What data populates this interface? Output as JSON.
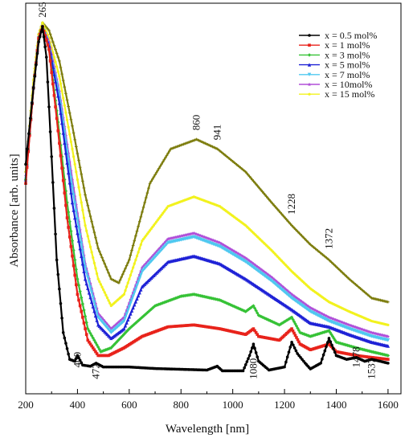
{
  "chart_data": {
    "type": "line",
    "xlabel": "Wavelength [nm]",
    "ylabel": "Absorbance [arb. units]",
    "xlim": [
      200,
      1650
    ],
    "ylim": [
      0,
      1
    ],
    "xticks": [
      200,
      400,
      600,
      800,
      1000,
      1200,
      1400,
      1600
    ],
    "grid": false,
    "legend_position": "top-right",
    "series": [
      {
        "name": "x = 0.5 mol%",
        "color": "#000000",
        "marker": "circle",
        "points": [
          [
            200,
            0.6
          ],
          [
            230,
            0.8
          ],
          [
            250,
            0.92
          ],
          [
            265,
            0.96
          ],
          [
            280,
            0.88
          ],
          [
            300,
            0.62
          ],
          [
            320,
            0.35
          ],
          [
            345,
            0.16
          ],
          [
            370,
            0.09
          ],
          [
            390,
            0.085
          ],
          [
            400,
            0.1
          ],
          [
            420,
            0.075
          ],
          [
            450,
            0.072
          ],
          [
            472,
            0.08
          ],
          [
            500,
            0.07
          ],
          [
            600,
            0.07
          ],
          [
            700,
            0.066
          ],
          [
            800,
            0.064
          ],
          [
            900,
            0.062
          ],
          [
            940,
            0.072
          ],
          [
            960,
            0.06
          ],
          [
            1040,
            0.06
          ],
          [
            1065,
            0.1
          ],
          [
            1080,
            0.13
          ],
          [
            1100,
            0.085
          ],
          [
            1140,
            0.062
          ],
          [
            1200,
            0.07
          ],
          [
            1228,
            0.135
          ],
          [
            1250,
            0.105
          ],
          [
            1280,
            0.08
          ],
          [
            1300,
            0.065
          ],
          [
            1340,
            0.08
          ],
          [
            1372,
            0.145
          ],
          [
            1400,
            0.1
          ],
          [
            1440,
            0.09
          ],
          [
            1478,
            0.095
          ],
          [
            1510,
            0.085
          ],
          [
            1537,
            0.09
          ],
          [
            1570,
            0.085
          ],
          [
            1600,
            0.08
          ]
        ]
      },
      {
        "name": "x = 1 mol%",
        "color": "#e8231b",
        "marker": "square",
        "points": [
          [
            200,
            0.55
          ],
          [
            230,
            0.8
          ],
          [
            250,
            0.93
          ],
          [
            265,
            0.96
          ],
          [
            290,
            0.9
          ],
          [
            320,
            0.72
          ],
          [
            360,
            0.46
          ],
          [
            400,
            0.26
          ],
          [
            440,
            0.14
          ],
          [
            480,
            0.1
          ],
          [
            520,
            0.1
          ],
          [
            580,
            0.12
          ],
          [
            650,
            0.15
          ],
          [
            750,
            0.175
          ],
          [
            850,
            0.18
          ],
          [
            950,
            0.17
          ],
          [
            1050,
            0.155
          ],
          [
            1080,
            0.17
          ],
          [
            1100,
            0.15
          ],
          [
            1180,
            0.14
          ],
          [
            1228,
            0.17
          ],
          [
            1260,
            0.13
          ],
          [
            1300,
            0.115
          ],
          [
            1372,
            0.13
          ],
          [
            1400,
            0.11
          ],
          [
            1478,
            0.1
          ],
          [
            1537,
            0.095
          ],
          [
            1600,
            0.09
          ]
        ]
      },
      {
        "name": "x = 3 mol%",
        "color": "#36c236",
        "marker": "diamond",
        "points": [
          [
            200,
            0.56
          ],
          [
            230,
            0.8
          ],
          [
            250,
            0.93
          ],
          [
            265,
            0.96
          ],
          [
            290,
            0.9
          ],
          [
            320,
            0.74
          ],
          [
            360,
            0.5
          ],
          [
            400,
            0.3
          ],
          [
            440,
            0.17
          ],
          [
            490,
            0.11
          ],
          [
            530,
            0.12
          ],
          [
            600,
            0.17
          ],
          [
            700,
            0.23
          ],
          [
            800,
            0.255
          ],
          [
            850,
            0.26
          ],
          [
            950,
            0.245
          ],
          [
            1050,
            0.215
          ],
          [
            1080,
            0.23
          ],
          [
            1100,
            0.205
          ],
          [
            1180,
            0.18
          ],
          [
            1228,
            0.2
          ],
          [
            1260,
            0.16
          ],
          [
            1300,
            0.15
          ],
          [
            1372,
            0.165
          ],
          [
            1400,
            0.135
          ],
          [
            1478,
            0.12
          ],
          [
            1537,
            0.11
          ],
          [
            1600,
            0.1
          ]
        ]
      },
      {
        "name": "x = 5 mol%",
        "color": "#1f22d6",
        "marker": "triangle",
        "points": [
          [
            200,
            0.56
          ],
          [
            230,
            0.8
          ],
          [
            250,
            0.93
          ],
          [
            265,
            0.96
          ],
          [
            290,
            0.91
          ],
          [
            330,
            0.76
          ],
          [
            380,
            0.5
          ],
          [
            430,
            0.3
          ],
          [
            480,
            0.18
          ],
          [
            530,
            0.145
          ],
          [
            580,
            0.17
          ],
          [
            650,
            0.28
          ],
          [
            750,
            0.345
          ],
          [
            850,
            0.36
          ],
          [
            950,
            0.34
          ],
          [
            1050,
            0.3
          ],
          [
            1150,
            0.255
          ],
          [
            1228,
            0.22
          ],
          [
            1300,
            0.185
          ],
          [
            1372,
            0.175
          ],
          [
            1450,
            0.155
          ],
          [
            1537,
            0.135
          ],
          [
            1600,
            0.125
          ]
        ]
      },
      {
        "name": "x = 7 mol%",
        "color": "#4fc8f0",
        "marker": "triangle-down",
        "points": [
          [
            200,
            0.56
          ],
          [
            230,
            0.8
          ],
          [
            250,
            0.93
          ],
          [
            265,
            0.96
          ],
          [
            290,
            0.91
          ],
          [
            330,
            0.78
          ],
          [
            380,
            0.54
          ],
          [
            430,
            0.33
          ],
          [
            480,
            0.2
          ],
          [
            530,
            0.16
          ],
          [
            580,
            0.19
          ],
          [
            650,
            0.32
          ],
          [
            750,
            0.395
          ],
          [
            850,
            0.41
          ],
          [
            950,
            0.385
          ],
          [
            1050,
            0.345
          ],
          [
            1150,
            0.295
          ],
          [
            1228,
            0.25
          ],
          [
            1300,
            0.215
          ],
          [
            1372,
            0.19
          ],
          [
            1450,
            0.17
          ],
          [
            1537,
            0.15
          ],
          [
            1600,
            0.14
          ]
        ]
      },
      {
        "name": "x = 10mol%",
        "color": "#b04fd8",
        "marker": "star",
        "points": [
          [
            200,
            0.57
          ],
          [
            230,
            0.8
          ],
          [
            250,
            0.93
          ],
          [
            265,
            0.96
          ],
          [
            290,
            0.92
          ],
          [
            330,
            0.79
          ],
          [
            380,
            0.56
          ],
          [
            430,
            0.34
          ],
          [
            480,
            0.21
          ],
          [
            530,
            0.17
          ],
          [
            580,
            0.2
          ],
          [
            650,
            0.33
          ],
          [
            750,
            0.405
          ],
          [
            850,
            0.42
          ],
          [
            950,
            0.395
          ],
          [
            1050,
            0.355
          ],
          [
            1150,
            0.305
          ],
          [
            1228,
            0.26
          ],
          [
            1300,
            0.225
          ],
          [
            1372,
            0.2
          ],
          [
            1450,
            0.18
          ],
          [
            1537,
            0.16
          ],
          [
            1600,
            0.15
          ]
        ]
      },
      {
        "name": "x = 15 mol%",
        "color": "#f2f21e",
        "marker": "pentagon",
        "points": [
          [
            200,
            0.58
          ],
          [
            230,
            0.82
          ],
          [
            250,
            0.94
          ],
          [
            265,
            0.97
          ],
          [
            290,
            0.93
          ],
          [
            330,
            0.83
          ],
          [
            380,
            0.64
          ],
          [
            430,
            0.44
          ],
          [
            480,
            0.3
          ],
          [
            530,
            0.23
          ],
          [
            580,
            0.26
          ],
          [
            650,
            0.4
          ],
          [
            750,
            0.49
          ],
          [
            850,
            0.515
          ],
          [
            950,
            0.49
          ],
          [
            1050,
            0.44
          ],
          [
            1150,
            0.375
          ],
          [
            1228,
            0.32
          ],
          [
            1300,
            0.275
          ],
          [
            1372,
            0.24
          ],
          [
            1450,
            0.215
          ],
          [
            1537,
            0.19
          ],
          [
            1600,
            0.18
          ]
        ]
      },
      {
        "name": "",
        "color": "#7d7d0e",
        "marker": "cross",
        "points": [
          [
            200,
            0.58
          ],
          [
            230,
            0.82
          ],
          [
            250,
            0.94
          ],
          [
            265,
            0.97
          ],
          [
            290,
            0.95
          ],
          [
            330,
            0.87
          ],
          [
            380,
            0.7
          ],
          [
            430,
            0.52
          ],
          [
            480,
            0.38
          ],
          [
            530,
            0.3
          ],
          [
            560,
            0.29
          ],
          [
            600,
            0.35
          ],
          [
            680,
            0.55
          ],
          [
            760,
            0.64
          ],
          [
            860,
            0.665
          ],
          [
            941,
            0.64
          ],
          [
            1050,
            0.58
          ],
          [
            1150,
            0.5
          ],
          [
            1228,
            0.44
          ],
          [
            1300,
            0.39
          ],
          [
            1372,
            0.35
          ],
          [
            1450,
            0.3
          ],
          [
            1537,
            0.25
          ],
          [
            1600,
            0.24
          ]
        ]
      }
    ],
    "annotations": [
      {
        "text": "265",
        "x": 265,
        "y": 0.975,
        "rotate": -90
      },
      {
        "text": "860",
        "x": 860,
        "y": 0.68,
        "rotate": -90
      },
      {
        "text": "941",
        "x": 941,
        "y": 0.655,
        "rotate": -90
      },
      {
        "text": "1228",
        "x": 1228,
        "y": 0.46,
        "rotate": -90
      },
      {
        "text": "1372",
        "x": 1372,
        "y": 0.37,
        "rotate": -90
      },
      {
        "text": "400",
        "x": 400,
        "y": 0.06,
        "rotate": -90
      },
      {
        "text": "472",
        "x": 472,
        "y": 0.03,
        "rotate": -90
      },
      {
        "text": "1080",
        "x": 1080,
        "y": 0.03,
        "rotate": -90
      },
      {
        "text": "1478",
        "x": 1478,
        "y": 0.06,
        "rotate": -90
      },
      {
        "text": "1537",
        "x": 1537,
        "y": 0.03,
        "rotate": -90
      }
    ]
  }
}
